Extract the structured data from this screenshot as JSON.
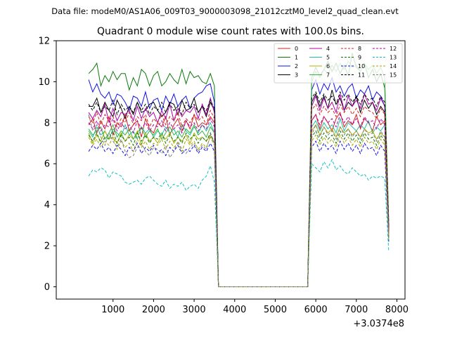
{
  "figure": {
    "suptitle": "Data file: modeM0/AS1A06_009T03_9000003098_21012cztM0_level2_quad_clean.evt",
    "offset_label": "+3.0374e8"
  },
  "chart_data": {
    "type": "line",
    "title": "Quadrant 0 module wise count rates with 100.0s bins.",
    "xlabel": "",
    "ylabel": "",
    "xlim": [
      -400,
      8200
    ],
    "ylim": [
      -0.6,
      12.0
    ],
    "x_offset": 303740000,
    "xticks": [
      1000,
      2000,
      3000,
      4000,
      5000,
      6000,
      7000,
      8000
    ],
    "xtick_labels": [
      "1000",
      "2000",
      "3000",
      "4000",
      "5000",
      "6000",
      "7000",
      "8000"
    ],
    "yticks": [
      0,
      2,
      4,
      6,
      8,
      10,
      12
    ],
    "ytick_labels": [
      "0",
      "2",
      "4",
      "6",
      "8",
      "10",
      "12"
    ],
    "grid": false,
    "legend_position": "top-right",
    "x": [
      400,
      500,
      600,
      700,
      800,
      900,
      1000,
      1100,
      1200,
      1300,
      1400,
      1500,
      1600,
      1700,
      1800,
      1900,
      2000,
      2100,
      2200,
      2300,
      2400,
      2500,
      2600,
      2700,
      2800,
      2900,
      3000,
      3100,
      3200,
      3300,
      3400,
      3500,
      3550,
      3600,
      3650,
      5750,
      5800,
      5900,
      6000,
      6100,
      6200,
      6300,
      6400,
      6500,
      6600,
      6700,
      6800,
      6900,
      7000,
      7100,
      7200,
      7300,
      7400,
      7500,
      7600,
      7700,
      7800
    ],
    "series": [
      {
        "name": "0",
        "color": "#d62020",
        "dash": "solid",
        "values": [
          7.9,
          8.2,
          7.5,
          8.1,
          7.7,
          8.3,
          7.4,
          8.0,
          7.8,
          8.4,
          7.6,
          7.9,
          8.1,
          7.3,
          8.2,
          7.7,
          7.5,
          8.0,
          7.8,
          8.3,
          7.4,
          7.9,
          8.2,
          7.6,
          8.1,
          7.7,
          8.4,
          7.8,
          8.0,
          7.9,
          8.3,
          8.0,
          4.0,
          0.0,
          0.0,
          0.0,
          0.0,
          8.1,
          8.4,
          7.7,
          8.3,
          8.0,
          7.6,
          8.2,
          8.5,
          7.8,
          8.1,
          7.9,
          8.4,
          7.7,
          8.2,
          8.0,
          7.6,
          8.3,
          7.9,
          8.1,
          2.8
        ]
      },
      {
        "name": "1",
        "color": "#0a7a0a",
        "dash": "solid",
        "values": [
          10.4,
          10.6,
          10.9,
          9.8,
          10.3,
          10.0,
          10.5,
          10.1,
          10.4,
          10.4,
          9.6,
          10.2,
          9.8,
          10.6,
          10.4,
          9.8,
          10.3,
          10.5,
          9.8,
          10.0,
          10.4,
          10.1,
          9.9,
          10.6,
          9.9,
          10.5,
          10.2,
          10.3,
          10.0,
          9.9,
          10.4,
          9.8,
          5.0,
          0.0,
          0.0,
          0.0,
          0.0,
          10.2,
          10.7,
          10.3,
          10.6,
          11.0,
          10.5,
          10.9,
          10.4,
          10.8,
          10.3,
          11.4,
          10.7,
          10.5,
          10.9,
          10.2,
          10.6,
          10.0,
          10.4,
          9.7,
          3.2
        ]
      },
      {
        "name": "2",
        "color": "#1010e8",
        "dash": "solid",
        "values": [
          10.1,
          9.5,
          9.9,
          9.4,
          9.2,
          9.5,
          8.9,
          9.4,
          9.3,
          9.0,
          8.6,
          9.3,
          9.2,
          8.8,
          9.5,
          8.7,
          9.1,
          9.2,
          8.6,
          9.3,
          8.9,
          9.4,
          8.8,
          9.1,
          9.3,
          8.7,
          9.2,
          9.4,
          9.5,
          9.8,
          9.9,
          9.0,
          4.5,
          0.0,
          0.0,
          0.0,
          0.0,
          9.6,
          10.1,
          9.4,
          9.9,
          9.6,
          10.2,
          9.5,
          9.8,
          9.3,
          9.7,
          9.9,
          9.2,
          9.6,
          9.4,
          9.8,
          9.1,
          9.5,
          9.3,
          8.8,
          2.9
        ]
      },
      {
        "name": "3",
        "color": "#000000",
        "dash": "solid",
        "values": [
          8.8,
          8.8,
          9.2,
          8.5,
          9.0,
          8.6,
          8.3,
          9.1,
          8.7,
          8.2,
          8.8,
          8.4,
          9.0,
          8.5,
          8.6,
          8.9,
          9.0,
          8.6,
          8.3,
          8.5,
          9.0,
          8.9,
          8.4,
          9.1,
          8.6,
          8.7,
          9.2,
          8.5,
          8.8,
          8.3,
          9.0,
          8.6,
          4.2,
          0.0,
          0.0,
          0.0,
          0.0,
          9.0,
          9.4,
          8.8,
          9.3,
          8.7,
          9.6,
          8.9,
          9.2,
          8.6,
          9.0,
          8.8,
          9.3,
          8.5,
          9.1,
          8.7,
          9.0,
          8.4,
          8.8,
          8.5,
          2.7
        ]
      },
      {
        "name": "4",
        "color": "#b000b0",
        "dash": "solid",
        "values": [
          8.5,
          8.2,
          8.6,
          8.3,
          8.9,
          8.0,
          8.7,
          8.1,
          8.5,
          8.4,
          8.6,
          8.1,
          8.8,
          8.2,
          8.7,
          8.3,
          8.5,
          8.0,
          8.6,
          8.2,
          8.9,
          8.1,
          8.7,
          8.3,
          8.6,
          8.5,
          8.8,
          8.2,
          8.9,
          8.4,
          9.2,
          8.5,
          4.1,
          0.0,
          0.0,
          0.0,
          0.0,
          8.8,
          9.3,
          8.6,
          9.2,
          8.7,
          9.0,
          8.5,
          9.4,
          8.6,
          9.3,
          8.8,
          9.1,
          8.7,
          9.4,
          8.9,
          9.0,
          8.6,
          9.2,
          8.8,
          2.8
        ]
      },
      {
        "name": "5",
        "color": "#20c0a0",
        "dash": "solid",
        "values": [
          7.6,
          7.3,
          7.8,
          7.4,
          7.6,
          7.2,
          7.7,
          7.5,
          7.3,
          7.9,
          7.4,
          7.6,
          7.2,
          7.8,
          7.5,
          7.7,
          7.3,
          7.6,
          7.4,
          7.8,
          7.5,
          7.7,
          7.3,
          7.9,
          7.6,
          7.4,
          7.8,
          7.5,
          7.9,
          7.6,
          8.0,
          7.5,
          3.7,
          0.0,
          0.0,
          0.0,
          0.0,
          7.8,
          8.1,
          7.6,
          8.0,
          7.7,
          7.9,
          7.5,
          8.2,
          7.6,
          8.0,
          7.8,
          7.6,
          7.9,
          7.7,
          8.1,
          7.5,
          7.8,
          7.6,
          7.9,
          2.5
        ]
      },
      {
        "name": "6",
        "color": "#b0b000",
        "dash": "solid",
        "values": [
          7.5,
          7.0,
          7.4,
          7.1,
          7.6,
          7.2,
          7.3,
          7.0,
          7.5,
          7.1,
          7.4,
          7.2,
          7.6,
          6.9,
          7.5,
          7.1,
          7.3,
          7.0,
          7.4,
          7.2,
          7.5,
          7.0,
          7.3,
          7.1,
          7.4,
          7.0,
          7.5,
          7.2,
          7.3,
          7.1,
          7.4,
          7.0,
          3.6,
          0.0,
          0.0,
          0.0,
          0.0,
          7.6,
          7.9,
          7.4,
          7.8,
          7.5,
          7.7,
          7.3,
          7.8,
          7.5,
          7.7,
          7.4,
          7.6,
          7.3,
          7.7,
          7.5,
          7.6,
          7.2,
          7.5,
          7.3,
          2.4
        ]
      },
      {
        "name": "7",
        "color": "#40b040",
        "dash": "solid",
        "values": [
          7.7,
          7.4,
          7.6,
          7.8,
          7.2,
          7.5,
          7.9,
          7.3,
          7.6,
          7.4,
          7.7,
          7.2,
          7.5,
          7.8,
          7.3,
          7.6,
          7.4,
          7.7,
          7.2,
          7.5,
          7.8,
          7.4,
          7.6,
          7.3,
          7.7,
          7.5,
          7.9,
          7.4,
          7.6,
          7.3,
          7.8,
          7.5,
          3.8,
          0.0,
          0.0,
          0.0,
          0.0,
          10.0,
          10.5,
          10.2,
          10.6,
          10.4,
          10.8,
          10.5,
          10.9,
          10.6,
          11.0,
          10.7,
          10.8,
          10.5,
          10.9,
          10.6,
          10.8,
          10.4,
          10.7,
          10.2,
          3.0
        ]
      },
      {
        "name": "8",
        "color": "#d62020",
        "dash": "dashed",
        "values": [
          8.3,
          8.0,
          8.5,
          7.9,
          8.4,
          8.1,
          8.3,
          7.8,
          8.2,
          8.0,
          8.5,
          7.9,
          8.3,
          8.1,
          8.4,
          7.8,
          8.2,
          8.0,
          8.4,
          7.9,
          8.3,
          8.1,
          8.5,
          7.8,
          8.2,
          8.0,
          8.4,
          8.1,
          8.3,
          7.9,
          8.6,
          8.2,
          4.1,
          0.0,
          0.0,
          0.0,
          0.0,
          8.6,
          8.9,
          8.4,
          8.8,
          8.5,
          8.7,
          8.3,
          8.9,
          8.5,
          8.8,
          8.4,
          8.7,
          8.3,
          8.8,
          8.6,
          8.5,
          8.2,
          8.7,
          8.4,
          2.7
        ]
      },
      {
        "name": "9",
        "color": "#0a7a0a",
        "dash": "dashed",
        "values": [
          7.4,
          7.1,
          7.5,
          7.0,
          7.3,
          7.2,
          7.6,
          7.0,
          7.4,
          7.1,
          7.3,
          6.9,
          7.5,
          7.1,
          7.4,
          7.0,
          7.3,
          7.2,
          7.5,
          7.0,
          7.4,
          7.1,
          7.3,
          7.0,
          7.5,
          7.2,
          7.4,
          7.0,
          7.3,
          7.1,
          7.5,
          7.0,
          3.6,
          0.0,
          0.0,
          0.0,
          0.0,
          7.3,
          7.6,
          7.1,
          7.5,
          7.2,
          7.4,
          7.0,
          7.6,
          7.2,
          7.5,
          7.1,
          7.4,
          7.0,
          7.5,
          7.2,
          7.3,
          6.9,
          7.4,
          7.1,
          2.3
        ]
      },
      {
        "name": "10",
        "color": "#1010e8",
        "dash": "dashed",
        "values": [
          6.6,
          6.9,
          6.7,
          7.0,
          6.6,
          6.8,
          6.5,
          6.9,
          6.7,
          6.4,
          6.8,
          6.6,
          7.0,
          6.5,
          6.8,
          6.6,
          6.9,
          6.5,
          6.7,
          6.4,
          6.8,
          6.6,
          6.9,
          6.5,
          6.7,
          6.6,
          6.9,
          6.5,
          6.8,
          6.6,
          7.0,
          6.6,
          3.3,
          0.0,
          0.0,
          0.0,
          0.0,
          6.8,
          7.1,
          6.6,
          7.0,
          6.7,
          6.9,
          6.5,
          7.1,
          6.7,
          7.0,
          6.6,
          6.9,
          6.5,
          7.0,
          6.7,
          6.8,
          6.4,
          6.9,
          6.6,
          2.2
        ]
      },
      {
        "name": "11",
        "color": "#000000",
        "dash": "dashed",
        "values": [
          8.9,
          8.6,
          9.0,
          8.5,
          8.8,
          8.6,
          9.1,
          8.4,
          8.9,
          8.6,
          8.8,
          8.5,
          9.0,
          8.6,
          8.9,
          8.4,
          8.8,
          8.6,
          9.0,
          8.5,
          8.9,
          8.6,
          8.8,
          8.4,
          9.0,
          8.7,
          8.9,
          8.5,
          8.8,
          8.6,
          9.1,
          8.7,
          4.3,
          0.0,
          0.0,
          0.0,
          0.0,
          9.2,
          9.5,
          9.0,
          9.4,
          9.1,
          9.3,
          8.9,
          9.5,
          9.1,
          9.4,
          9.0,
          9.3,
          8.9,
          9.4,
          9.1,
          9.2,
          8.8,
          9.3,
          9.0,
          2.9
        ]
      },
      {
        "name": "12",
        "color": "#b000b0",
        "dash": "dashed",
        "values": [
          8.0,
          7.7,
          8.1,
          7.6,
          7.9,
          7.8,
          8.2,
          7.6,
          8.0,
          7.7,
          7.9,
          7.5,
          8.1,
          7.7,
          8.0,
          7.6,
          7.9,
          7.8,
          8.1,
          7.6,
          8.0,
          7.7,
          7.9,
          7.5,
          8.1,
          7.8,
          8.0,
          7.6,
          7.9,
          7.7,
          8.2,
          7.8,
          3.9,
          0.0,
          0.0,
          0.0,
          0.0,
          8.1,
          8.4,
          7.9,
          8.3,
          8.0,
          8.2,
          7.8,
          8.4,
          8.0,
          8.3,
          7.9,
          8.2,
          7.8,
          8.3,
          8.0,
          8.1,
          7.7,
          8.2,
          7.9,
          2.6
        ]
      },
      {
        "name": "13",
        "color": "#10c0c0",
        "dash": "dashed",
        "values": [
          5.4,
          5.7,
          5.6,
          5.8,
          5.7,
          5.3,
          5.6,
          5.5,
          5.4,
          5.1,
          5.0,
          5.1,
          5.2,
          5.0,
          5.3,
          5.4,
          5.2,
          5.0,
          4.9,
          5.2,
          4.8,
          5.0,
          4.9,
          5.1,
          4.7,
          4.9,
          5.0,
          4.8,
          5.2,
          5.4,
          5.9,
          5.1,
          2.6,
          0.0,
          0.0,
          0.0,
          0.0,
          6.0,
          5.8,
          5.6,
          6.1,
          5.8,
          6.2,
          5.7,
          5.9,
          5.6,
          5.5,
          5.8,
          5.6,
          5.4,
          5.5,
          5.2,
          5.4,
          5.3,
          5.4,
          5.3,
          1.7
        ]
      },
      {
        "name": "14",
        "color": "#a8a800",
        "dash": "dashed",
        "values": [
          7.3,
          6.9,
          7.2,
          6.8,
          7.1,
          6.9,
          7.3,
          6.7,
          7.1,
          6.8,
          7.0,
          6.6,
          7.2,
          6.8,
          7.1,
          6.7,
          7.0,
          6.9,
          7.2,
          6.7,
          7.1,
          6.8,
          7.0,
          6.6,
          7.2,
          6.9,
          7.1,
          6.7,
          7.0,
          6.8,
          7.3,
          6.9,
          3.5,
          0.0,
          0.0,
          0.0,
          0.0,
          7.1,
          7.4,
          6.9,
          7.3,
          7.0,
          7.2,
          6.8,
          7.4,
          7.0,
          7.3,
          6.9,
          7.2,
          6.8,
          7.3,
          7.0,
          7.1,
          6.7,
          7.2,
          6.9,
          2.3
        ]
      },
      {
        "name": "15",
        "color": "#808080",
        "dash": "dashed",
        "values": [
          8.4,
          7.6,
          7.9,
          7.3,
          6.9,
          7.5,
          7.1,
          6.8,
          7.2,
          6.6,
          6.3,
          6.4,
          6.8,
          7.0,
          6.6,
          6.4,
          6.8,
          6.7,
          6.5,
          6.9,
          6.3,
          6.6,
          7.1,
          6.7,
          6.5,
          6.8,
          7.0,
          6.6,
          6.9,
          6.7,
          7.4,
          7.0,
          3.5,
          0.0,
          0.0,
          0.0,
          0.0,
          7.4,
          7.9,
          7.3,
          7.8,
          7.4,
          7.6,
          7.2,
          7.8,
          7.4,
          7.7,
          7.3,
          7.6,
          7.2,
          7.7,
          7.4,
          7.5,
          7.1,
          7.6,
          7.3,
          2.4
        ]
      }
    ]
  }
}
